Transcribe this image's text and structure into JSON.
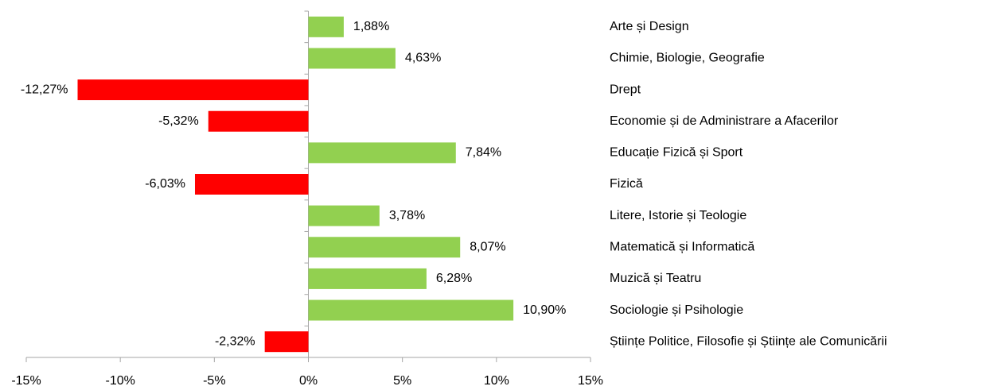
{
  "chart_data": {
    "type": "bar",
    "orientation": "horizontal",
    "categories": [
      "Arte și Design",
      "Chimie, Biologie, Geografie",
      "Drept",
      "Economie și de Administrare a Afacerilor",
      "Educație Fizică și Sport",
      "Fizică",
      "Litere, Istorie și Teologie",
      "Matematică și Informatică",
      "Muzică și Teatru",
      "Sociologie și Psihologie",
      "Științe Politice, Filosofie și Științe ale Comunicării"
    ],
    "values": [
      1.88,
      4.63,
      -12.27,
      -5.32,
      7.84,
      -6.03,
      3.78,
      8.07,
      6.28,
      10.9,
      -2.32
    ],
    "value_labels": [
      "1,88%",
      "4,63%",
      "-12,27%",
      "-5,32%",
      "7,84%",
      "-6,03%",
      "3,78%",
      "8,07%",
      "6,28%",
      "10,90%",
      "-2,32%"
    ],
    "positive_color": "#92d050",
    "negative_color": "#ff0000",
    "xlim": [
      -15,
      15
    ],
    "xticks": [
      {
        "value": -15,
        "label": "-15%"
      },
      {
        "value": -10,
        "label": "-10%"
      },
      {
        "value": -5,
        "label": "-5%"
      },
      {
        "value": 0,
        "label": "0%"
      },
      {
        "value": 5,
        "label": "5%"
      },
      {
        "value": 10,
        "label": "10%"
      },
      {
        "value": 15,
        "label": "15%"
      }
    ],
    "grid": false
  }
}
